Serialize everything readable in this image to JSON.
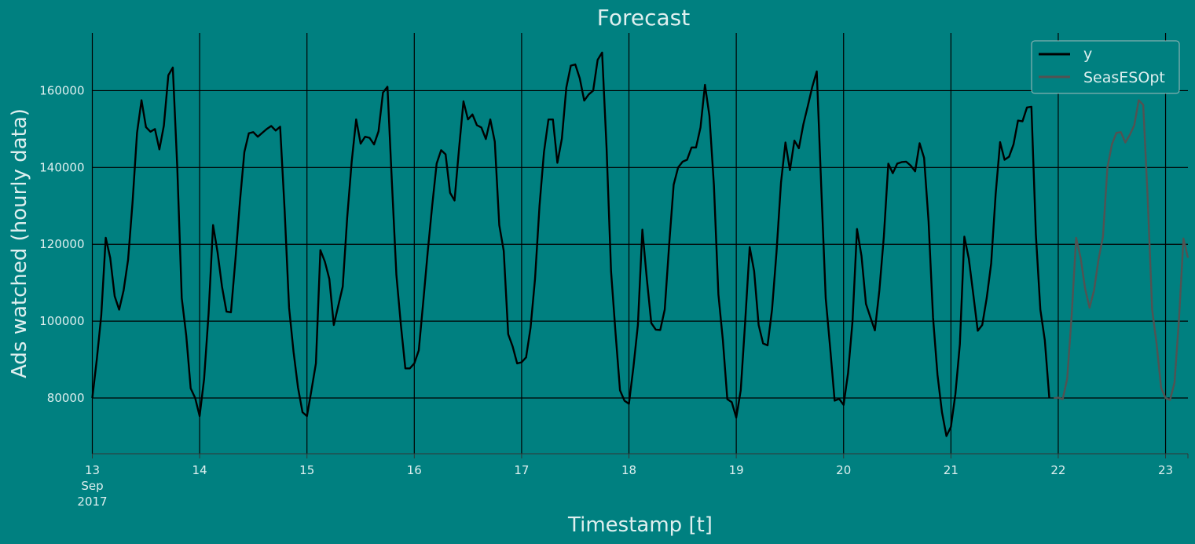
{
  "chart_data": {
    "type": "line",
    "title": "Forecast",
    "xlabel": "Timestamp [t]",
    "ylabel": "Ads watched (hourly data)",
    "x_start": "2017-09-13T00:00",
    "x_step_hours": 1,
    "xlim": [
      "2017-09-13T00:00",
      "2017-09-23T05:00"
    ],
    "ylim": [
      65500,
      175000
    ],
    "yticks": [
      80000,
      100000,
      120000,
      140000,
      160000
    ],
    "ytick_labels": [
      "80000",
      "100000",
      "120000",
      "140000",
      "160000"
    ],
    "xticks": [
      {
        "label": "13",
        "sublabel": "Sep",
        "sublabel2": "2017",
        "date": "2017-09-13"
      },
      {
        "label": "14",
        "date": "2017-09-14"
      },
      {
        "label": "15",
        "date": "2017-09-15"
      },
      {
        "label": "16",
        "date": "2017-09-16"
      },
      {
        "label": "17",
        "date": "2017-09-17"
      },
      {
        "label": "18",
        "date": "2017-09-18"
      },
      {
        "label": "19",
        "date": "2017-09-19"
      },
      {
        "label": "20",
        "date": "2017-09-20"
      },
      {
        "label": "21",
        "date": "2017-09-21"
      },
      {
        "label": "22",
        "date": "2017-09-22"
      },
      {
        "label": "23",
        "date": "2017-09-23"
      }
    ],
    "grid": true,
    "legend_position": "top-right",
    "series": [
      {
        "name": "y",
        "color": "#000000",
        "start": "2017-09-13T00:00",
        "values": [
          80000,
          90000,
          101500,
          121700,
          116500,
          106500,
          103000,
          108000,
          116000,
          131000,
          149000,
          157500,
          150500,
          149300,
          150000,
          144700,
          150900,
          164000,
          166000,
          140000,
          106000,
          96300,
          82500,
          80000,
          75300,
          85000,
          102000,
          125000,
          118000,
          109000,
          102500,
          102300,
          116000,
          131000,
          144000,
          148900,
          149200,
          148000,
          149000,
          150000,
          150800,
          149600,
          150600,
          129000,
          103500,
          92000,
          82700,
          76300,
          75300,
          82000,
          89000,
          118500,
          115500,
          111000,
          99000,
          104000,
          109000,
          127000,
          141500,
          152500,
          146200,
          148000,
          147700,
          146000,
          149400,
          159500,
          161000,
          136000,
          112000,
          99000,
          87700,
          87700,
          89000,
          92400,
          105000,
          118000,
          130000,
          141000,
          144500,
          143400,
          133400,
          131400,
          144800,
          157200,
          152500,
          153800,
          151000,
          150400,
          147400,
          152500,
          146700,
          125000,
          118300,
          96600,
          93400,
          89000,
          89300,
          90600,
          98300,
          111000,
          130000,
          144000,
          152500,
          152500,
          141200,
          147500,
          160800,
          166500,
          166800,
          163200,
          157400,
          159000,
          160000,
          168000,
          169900,
          145000,
          113000,
          97000,
          82000,
          79300,
          78500,
          88000,
          99000,
          123800,
          111000,
          99500,
          97800,
          97700,
          103000,
          120000,
          135500,
          140000,
          141500,
          142000,
          145200,
          145200,
          150400,
          161500,
          153400,
          135400,
          107000,
          95100,
          79700,
          78900,
          74900,
          82000,
          100000,
          119300,
          113000,
          99000,
          94200,
          93700,
          103000,
          118000,
          136000,
          146500,
          139300,
          147000,
          145000,
          151200,
          156000,
          161000,
          165000,
          135000,
          106000,
          93000,
          79300,
          79800,
          78200,
          86500,
          100000,
          124000,
          117000,
          104500,
          101000,
          97600,
          108000,
          122000,
          141000,
          138500,
          141000,
          141400,
          141500,
          140500,
          139000,
          146300,
          142500,
          126000,
          101000,
          86000,
          76300,
          70100,
          72500,
          81000,
          94000,
          122000,
          116300,
          107000,
          97500,
          99000,
          106000,
          115000,
          133000,
          146600,
          142000,
          142800,
          146000,
          152200,
          152000,
          155600,
          155800,
          122500,
          103000,
          95000,
          80000
        ]
      },
      {
        "name": "SeasESOpt",
        "color": "#525252",
        "start": "2017-09-21T23:00",
        "values": [
          80000,
          80100,
          79700,
          85000,
          101500,
          121700,
          116500,
          108500,
          103500,
          108000,
          116000,
          122000,
          140000,
          146000,
          149000,
          149200,
          146500,
          148500,
          151000,
          157500,
          156300,
          132000,
          103000,
          94000,
          82700,
          80000,
          79500,
          84000,
          100500,
          121500,
          116500
        ]
      }
    ]
  }
}
